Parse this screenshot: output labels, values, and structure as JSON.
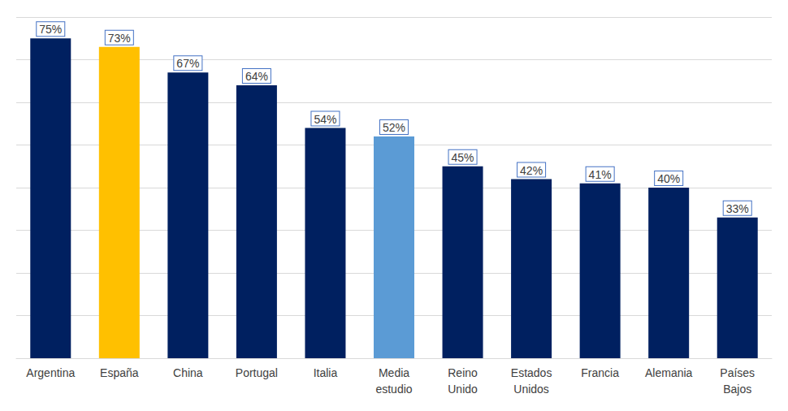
{
  "chart_data": {
    "type": "bar",
    "categories": [
      "Argentina",
      "España",
      "China",
      "Portugal",
      "Italia",
      "Media estudio",
      "Reino Unido",
      "Estados Unidos",
      "Francia",
      "Alemania",
      "Países Bajos"
    ],
    "values": [
      75,
      73,
      67,
      64,
      54,
      52,
      45,
      42,
      41,
      40,
      33
    ],
    "value_labels": [
      "75%",
      "73%",
      "67%",
      "64%",
      "54%",
      "52%",
      "45%",
      "42%",
      "41%",
      "40%",
      "33%"
    ],
    "colors": [
      "#002060",
      "#FFC000",
      "#002060",
      "#002060",
      "#002060",
      "#5B9BD5",
      "#002060",
      "#002060",
      "#002060",
      "#002060",
      "#002060"
    ],
    "ylim": [
      0,
      80
    ],
    "yticks": [
      0,
      10,
      20,
      30,
      40,
      50,
      60,
      70,
      80
    ],
    "grid": true,
    "data_labels": true,
    "tick_labels": "x"
  }
}
